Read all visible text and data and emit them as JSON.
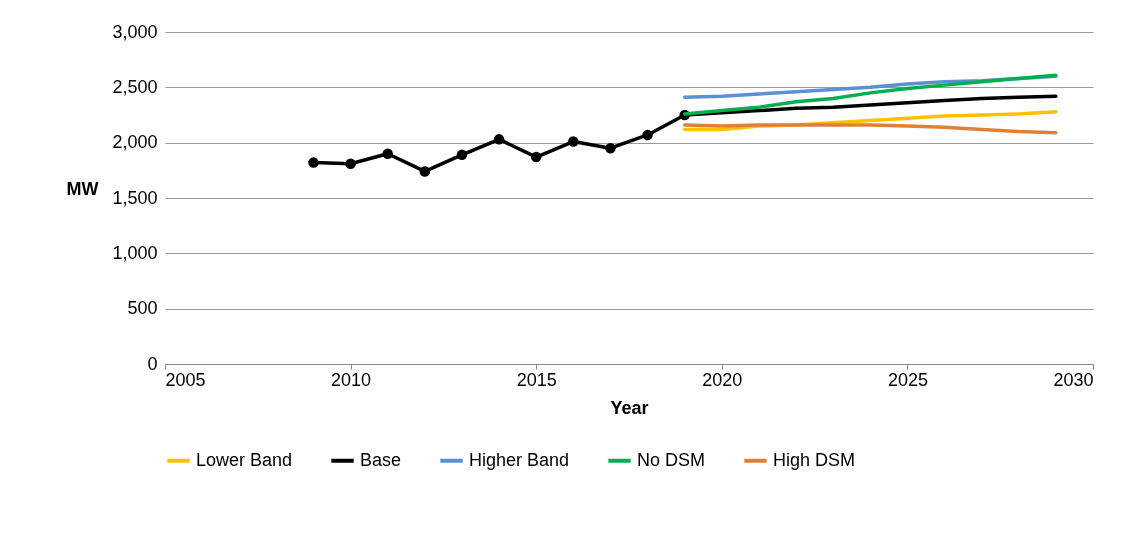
{
  "chart_data": {
    "type": "line",
    "xlabel": "Year",
    "ylabel": "MW",
    "xlim": [
      2005,
      2030
    ],
    "xticks": [
      2005,
      2010,
      2015,
      2020,
      2025,
      2030
    ],
    "ylim": [
      0,
      3000
    ],
    "yticks": [
      {
        "value": 0,
        "label": "0"
      },
      {
        "value": 500,
        "label": "500"
      },
      {
        "value": 1000,
        "label": "1,000"
      },
      {
        "value": 1500,
        "label": "1,500"
      },
      {
        "value": 2000,
        "label": "2,000"
      },
      {
        "value": 2500,
        "label": "2,500"
      },
      {
        "value": 3000,
        "label": "3,000"
      }
    ],
    "grid": "y",
    "legend": "bottom",
    "line_style": "solid",
    "series": [
      {
        "color": "#000000",
        "marker": "circle",
        "x": [
          2009,
          2010,
          2011,
          2012,
          2013,
          2014,
          2015,
          2016,
          2017,
          2018,
          2019
        ],
        "values": [
          1820,
          1810,
          1900,
          1740,
          1890,
          2030,
          1870,
          2010,
          1950,
          2070,
          2250
        ]
      },
      {
        "name": "Lower Band",
        "color": "#ffc000",
        "marker": "none",
        "x": [
          2019,
          2020,
          2021,
          2022,
          2023,
          2024,
          2025,
          2026,
          2027,
          2028,
          2029
        ],
        "values": [
          2120,
          2120,
          2150,
          2160,
          2180,
          2200,
          2220,
          2240,
          2250,
          2260,
          2280
        ]
      },
      {
        "name": "Base",
        "color": "#000000",
        "marker": "none",
        "x": [
          2019,
          2020,
          2021,
          2022,
          2023,
          2024,
          2025,
          2026,
          2027,
          2028,
          2029
        ],
        "values": [
          2250,
          2270,
          2290,
          2310,
          2320,
          2340,
          2360,
          2380,
          2400,
          2410,
          2420
        ]
      },
      {
        "name": "Higher Band",
        "color": "#5b8fd6",
        "marker": "none",
        "x": [
          2019,
          2020,
          2021,
          2022,
          2023,
          2024,
          2025,
          2026,
          2027,
          2028,
          2029
        ],
        "values": [
          2410,
          2420,
          2440,
          2460,
          2480,
          2500,
          2530,
          2550,
          2560,
          2580,
          2600
        ]
      },
      {
        "name": "No DSM",
        "color": "#00b050",
        "marker": "none",
        "x": [
          2019,
          2020,
          2021,
          2022,
          2023,
          2024,
          2025,
          2026,
          2027,
          2028,
          2029
        ],
        "values": [
          2260,
          2290,
          2320,
          2370,
          2400,
          2450,
          2490,
          2520,
          2550,
          2580,
          2610
        ]
      },
      {
        "name": "High DSM",
        "color": "#dd8038",
        "marker": "none",
        "x": [
          2019,
          2020,
          2021,
          2022,
          2023,
          2024,
          2025,
          2026,
          2027,
          2028,
          2029
        ],
        "values": [
          2160,
          2150,
          2160,
          2160,
          2160,
          2160,
          2150,
          2140,
          2120,
          2100,
          2090
        ]
      }
    ]
  }
}
